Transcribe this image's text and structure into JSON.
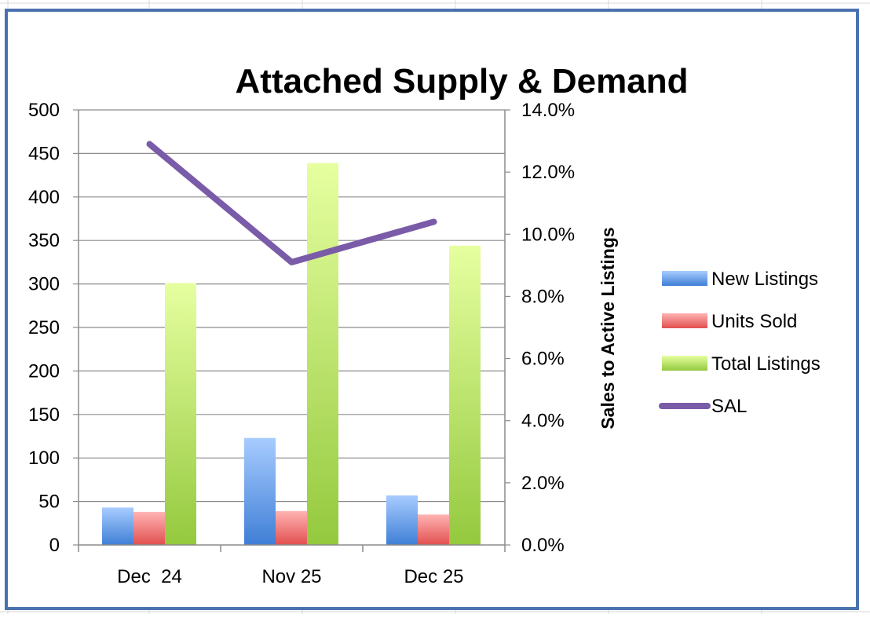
{
  "chart_data": {
    "type": "bar",
    "title": "Attached Supply & Demand",
    "categories": [
      "Dec  24",
      "Nov 25",
      "Dec 25"
    ],
    "series": [
      {
        "name": "New Listings",
        "kind": "bar",
        "axis": "left",
        "values": [
          43,
          123,
          57
        ],
        "color": "#5b8fdc"
      },
      {
        "name": "Units Sold",
        "kind": "bar",
        "axis": "left",
        "values": [
          38,
          39,
          35
        ],
        "color": "#e85c5c"
      },
      {
        "name": "Total Listings",
        "kind": "bar",
        "axis": "left",
        "values": [
          301,
          439,
          344
        ],
        "color": "#b6e05a"
      },
      {
        "name": "SAL",
        "kind": "line",
        "axis": "right",
        "values": [
          12.9,
          9.1,
          10.4
        ],
        "color": "#7a5ba8"
      }
    ],
    "y_left": {
      "range": [
        0,
        500
      ],
      "ticks": [
        "0",
        "50",
        "100",
        "150",
        "200",
        "250",
        "300",
        "350",
        "400",
        "450",
        "500"
      ]
    },
    "y_right": {
      "label": "Sales to Active Listings",
      "range": [
        0,
        14
      ],
      "ticks": [
        "0.0%",
        "2.0%",
        "4.0%",
        "6.0%",
        "8.0%",
        "10.0%",
        "12.0%",
        "14.0%"
      ]
    },
    "grid": true,
    "legend_position": "right"
  }
}
